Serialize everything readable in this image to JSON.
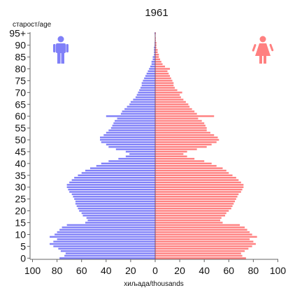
{
  "chart_data": {
    "type": "bar",
    "orientation": "horizontal",
    "title": "1961",
    "ylabel": "старост/age",
    "xlabel": "хиљада/thousands",
    "y_tick_labels": [
      "0",
      "5",
      "10",
      "15",
      "20",
      "25",
      "30",
      "35",
      "40",
      "45",
      "50",
      "55",
      "60",
      "65",
      "70",
      "75",
      "80",
      "85",
      "90",
      "95+"
    ],
    "x_tick_labels": [
      "100",
      "80",
      "60",
      "40",
      "20",
      "0",
      "20",
      "40",
      "60",
      "80",
      "100"
    ],
    "xlim": [
      -100,
      100
    ],
    "ages": [
      0,
      1,
      2,
      3,
      4,
      5,
      6,
      7,
      8,
      9,
      10,
      11,
      12,
      13,
      14,
      15,
      16,
      17,
      18,
      19,
      20,
      21,
      22,
      23,
      24,
      25,
      26,
      27,
      28,
      29,
      30,
      31,
      32,
      33,
      34,
      35,
      36,
      37,
      38,
      39,
      40,
      41,
      42,
      43,
      44,
      45,
      46,
      47,
      48,
      49,
      50,
      51,
      52,
      53,
      54,
      55,
      56,
      57,
      58,
      59,
      60,
      61,
      62,
      63,
      64,
      65,
      66,
      67,
      68,
      69,
      70,
      71,
      72,
      73,
      74,
      75,
      76,
      77,
      78,
      79,
      80,
      81,
      82,
      83,
      84,
      85,
      86,
      87,
      88,
      89,
      90,
      91,
      92,
      93,
      94,
      95
    ],
    "series": [
      {
        "name": "male",
        "color": "#8080f8",
        "values": [
          78,
          74,
          73,
          77,
          79,
          83,
          86,
          83,
          80,
          86,
          82,
          80,
          78,
          76,
          72,
          57,
          55,
          56,
          59,
          60,
          62,
          63,
          64,
          65,
          65,
          66,
          67,
          68,
          70,
          71,
          72,
          72,
          70,
          68,
          66,
          63,
          60,
          57,
          53,
          48,
          44,
          38,
          30,
          24,
          21,
          24,
          32,
          38,
          40,
          44,
          45,
          45,
          42,
          40,
          38,
          36,
          35,
          34,
          33,
          31,
          40,
          28,
          27,
          25,
          23,
          21,
          20,
          18,
          16,
          15,
          14,
          13,
          12,
          11,
          11,
          10,
          9,
          8,
          7,
          6,
          5,
          4,
          3,
          3,
          2,
          2,
          1,
          1,
          1,
          1,
          0.5,
          0.5,
          0.3,
          0.3,
          0.2,
          0.5
        ]
      },
      {
        "name": "female",
        "color": "#ff8080",
        "values": [
          74,
          71,
          70,
          73,
          76,
          79,
          82,
          80,
          77,
          83,
          79,
          77,
          75,
          73,
          69,
          55,
          53,
          54,
          57,
          58,
          60,
          62,
          63,
          64,
          65,
          66,
          67,
          68,
          70,
          71,
          72,
          72,
          70,
          68,
          66,
          63,
          60,
          58,
          55,
          50,
          46,
          40,
          32,
          26,
          23,
          26,
          34,
          42,
          46,
          50,
          52,
          51,
          48,
          45,
          42,
          42,
          41,
          40,
          38,
          35,
          48,
          34,
          32,
          30,
          28,
          27,
          25,
          23,
          21,
          20,
          22,
          18,
          16,
          15,
          15,
          14,
          13,
          12,
          11,
          10,
          12,
          8,
          6,
          5,
          4,
          3,
          3,
          2,
          2,
          1,
          1,
          1,
          0.5,
          0.5,
          0.3,
          0.5
        ]
      }
    ],
    "legend": "male-icon top-left, female-icon top-right"
  }
}
